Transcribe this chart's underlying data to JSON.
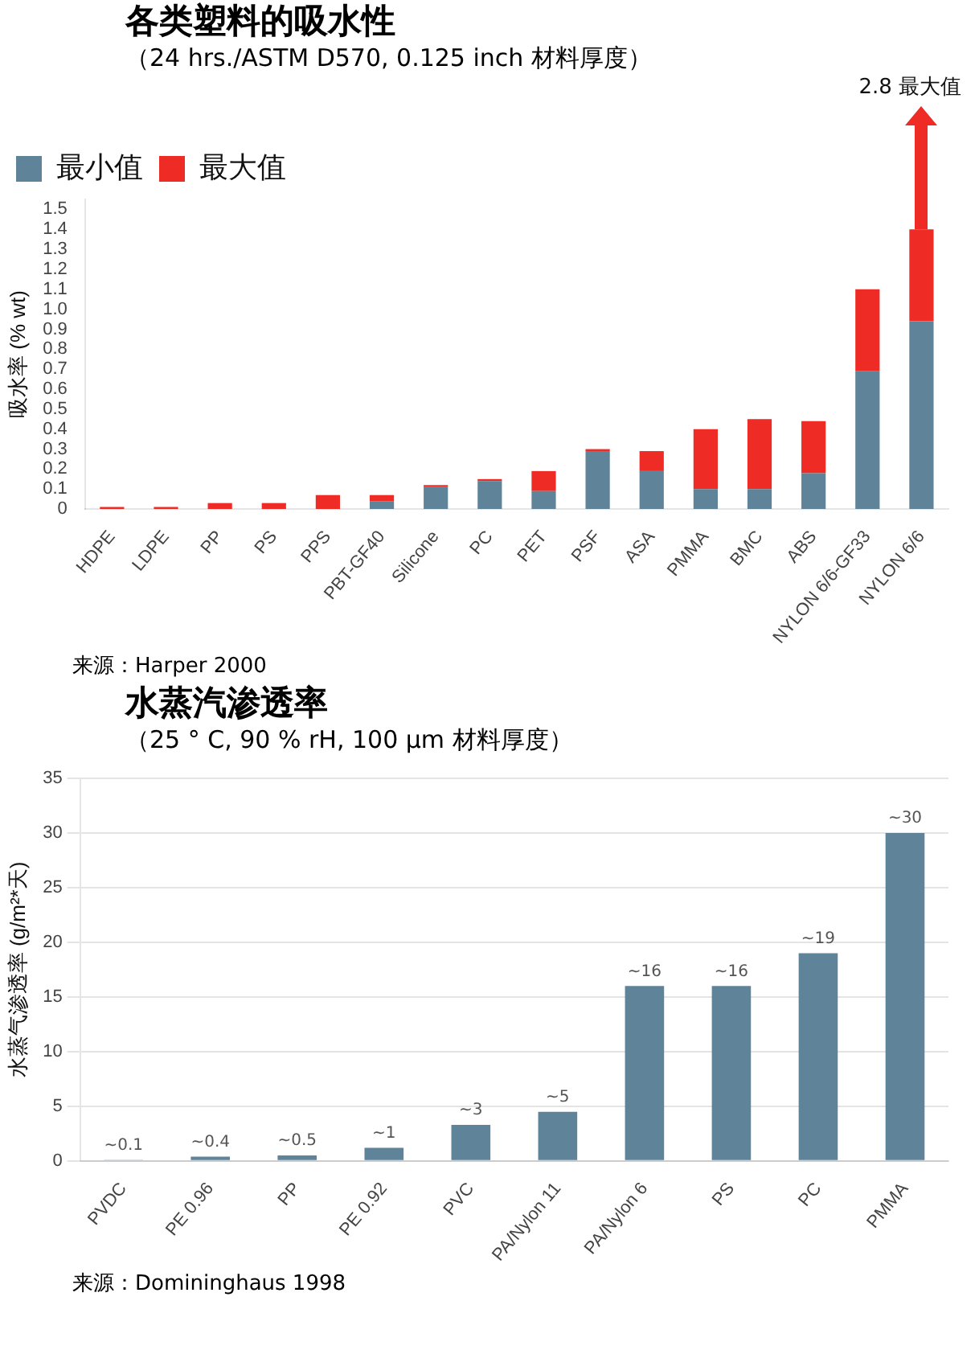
{
  "chart_data": [
    {
      "type": "bar",
      "title": "各类塑料的吸水性",
      "subtitle": "（24 hrs./ASTM D570, 0.125 inch 材料厚度）",
      "ylabel": "吸水率 (% wt)",
      "categories": [
        "HDPE",
        "LDPE",
        "PP",
        "PS",
        "PPS",
        "PBT-GF40",
        "Silicone",
        "PC",
        "PET",
        "PSF",
        "ASA",
        "PMMA",
        "BMC",
        "ABS",
        "NYLON 6/6-GF33",
        "NYLON 6/6"
      ],
      "stacked": true,
      "series": [
        {
          "name": "最小值",
          "color": "#5f8399",
          "values": [
            0.0,
            0.0,
            0.0,
            0.0,
            0.0,
            0.04,
            0.11,
            0.14,
            0.09,
            0.29,
            0.19,
            0.1,
            0.1,
            0.18,
            0.69,
            0.94
          ]
        },
        {
          "name": "最大值",
          "color": "#ee2b24",
          "values": [
            0.01,
            0.01,
            0.03,
            0.03,
            0.07,
            0.03,
            0.01,
            0.01,
            0.1,
            0.01,
            0.1,
            0.3,
            0.35,
            0.26,
            0.41,
            0.46
          ]
        }
      ],
      "ylim": [
        0,
        1.55
      ],
      "yticks": [
        0,
        0.1,
        0.2,
        0.3,
        0.4,
        0.5,
        0.6,
        0.7,
        0.8,
        0.9,
        {
          "value": 1,
          "label": "1.0"
        },
        1.1,
        1.2,
        1.3,
        1.4,
        1.5
      ],
      "grid": false,
      "legend": "top left",
      "annotations": [
        "2.8 最大值",
        "来源：Harper 2000"
      ]
    },
    {
      "type": "bar",
      "title": "水蒸汽渗透率",
      "subtitle": "（25 ° C, 90 % rH, 100 µm 材料厚度）",
      "ylabel": "水蒸气渗透率 (g/m²*天)",
      "categories": [
        "PVDC",
        "PE 0.96",
        "PP",
        "PE 0.92",
        "PVC",
        "PA/Nylon 11",
        "PA/Nylon 6",
        "PS",
        "PC",
        "PMMA"
      ],
      "series": [
        {
          "color": "#5f8399",
          "values": [
            0.1,
            0.4,
            0.5,
            1.2,
            3.3,
            4.5,
            16,
            16,
            19,
            30
          ],
          "value_labels": [
            "~0.1",
            "~0.4",
            "~0.5",
            "~1",
            "~3",
            "~5",
            "~16",
            "~16",
            "~19",
            "~30"
          ]
        }
      ],
      "ylim": [
        0,
        35
      ],
      "yticks": [
        0,
        5,
        10,
        15,
        20,
        25,
        30,
        35
      ],
      "grid": "y",
      "annotations": [
        "来源：Domininghaus 1998"
      ]
    }
  ]
}
